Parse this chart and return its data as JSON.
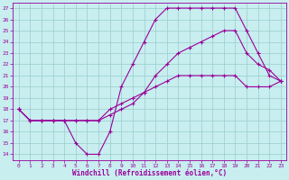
{
  "xlabel": "Windchill (Refroidissement éolien,°C)",
  "xlim": [
    -0.5,
    23.5
  ],
  "ylim": [
    13.5,
    27.5
  ],
  "xticks": [
    0,
    1,
    2,
    3,
    4,
    5,
    6,
    7,
    8,
    9,
    10,
    11,
    12,
    13,
    14,
    15,
    16,
    17,
    18,
    19,
    20,
    21,
    22,
    23
  ],
  "yticks": [
    14,
    15,
    16,
    17,
    18,
    19,
    20,
    21,
    22,
    23,
    24,
    25,
    26,
    27
  ],
  "bg_color": "#c8eef0",
  "line_color": "#990099",
  "grid_color": "#99cccc",
  "line1_x": [
    0,
    1,
    2,
    3,
    4,
    5,
    6,
    7,
    8,
    9,
    10,
    11,
    12,
    13,
    14,
    15,
    16,
    17,
    18,
    19,
    20,
    21,
    22,
    23
  ],
  "line1_y": [
    18,
    17,
    17,
    17,
    17,
    15,
    14,
    14,
    16,
    20,
    22,
    24,
    26,
    27,
    27,
    27,
    27,
    27,
    27,
    27,
    25,
    23,
    21,
    20.5
  ],
  "line2_x": [
    0,
    1,
    2,
    3,
    4,
    5,
    6,
    7,
    8,
    9,
    10,
    11,
    12,
    13,
    14,
    15,
    16,
    17,
    18,
    19,
    20,
    21,
    22,
    23
  ],
  "line2_y": [
    18,
    17,
    17,
    17,
    17,
    17,
    17,
    17,
    17.5,
    18,
    18.5,
    19.5,
    21,
    22,
    23,
    23.5,
    24,
    24.5,
    25,
    25,
    23,
    22,
    21.5,
    20.5
  ],
  "line3_x": [
    0,
    1,
    2,
    3,
    4,
    5,
    6,
    7,
    8,
    9,
    10,
    11,
    12,
    13,
    14,
    15,
    16,
    17,
    18,
    19,
    20,
    21,
    22,
    23
  ],
  "line3_y": [
    18,
    17,
    17,
    17,
    17,
    17,
    17,
    17,
    18,
    18.5,
    19,
    19.5,
    20,
    20.5,
    21,
    21,
    21,
    21,
    21,
    21,
    20,
    20,
    20,
    20.5
  ],
  "tick_fontsize": 4.5,
  "xlabel_fontsize": 5.5
}
